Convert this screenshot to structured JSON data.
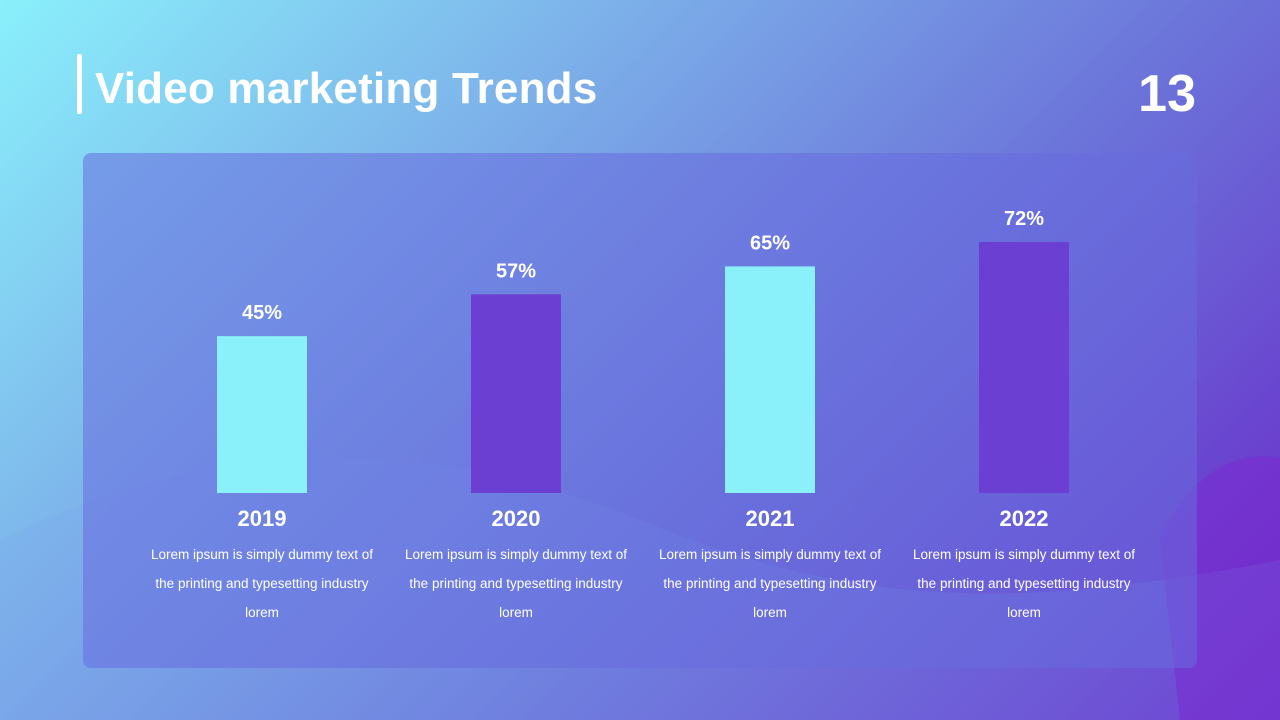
{
  "slide": {
    "title": "Video marketing Trends",
    "page_number": "13"
  },
  "colors": {
    "cyan_bar": "#8af0f9",
    "purple_bar": "#6a3fd2",
    "text": "#ffffff"
  },
  "chart_data": {
    "type": "bar",
    "categories": [
      "2019",
      "2020",
      "2021",
      "2022"
    ],
    "values": [
      45,
      57,
      65,
      72
    ],
    "value_labels": [
      "45%",
      "57%",
      "65%",
      "72%"
    ],
    "ylim": [
      0,
      72
    ],
    "grid": false,
    "bar_colors": [
      "#8af0f9",
      "#6a3fd2",
      "#8af0f9",
      "#6a3fd2"
    ]
  },
  "descriptions": [
    "Lorem ipsum is simply dummy text of the printing and typesetting industry lorem",
    "Lorem ipsum is simply dummy text of the printing and typesetting industry lorem",
    "Lorem ipsum is simply dummy text of the printing and typesetting industry lorem",
    "Lorem ipsum is simply dummy text of the printing and typesetting industry lorem"
  ]
}
